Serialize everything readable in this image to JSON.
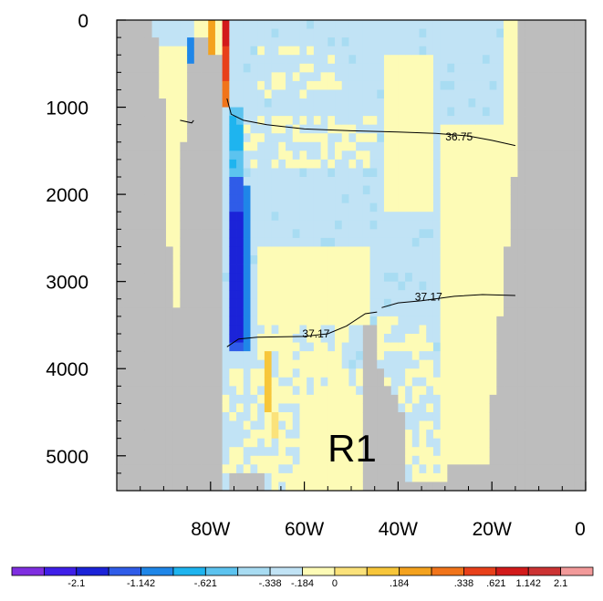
{
  "chart_data": {
    "type": "heatmap",
    "panel_label": "R1",
    "x_axis": {
      "range": [
        -100,
        0
      ],
      "ticks": [
        -80,
        -60,
        -40,
        -20,
        0
      ],
      "tick_labels": [
        "80W",
        "60W",
        "40W",
        "20W",
        "0"
      ]
    },
    "y_axis": {
      "range": [
        0,
        5400
      ],
      "reversed": true,
      "ticks": [
        0,
        1000,
        2000,
        3000,
        4000,
        5000
      ],
      "tick_labels": [
        "0",
        "1000",
        "2000",
        "3000",
        "4000",
        "5000"
      ]
    },
    "colorbar": {
      "colors": [
        "#7f2ee0",
        "#3f1fe8",
        "#1b23d8",
        "#2f5ce8",
        "#1f86e8",
        "#1eb4ef",
        "#5cc3ef",
        "#a8dcf2",
        "#c1e3f5",
        "#fdfbb6",
        "#fbe27a",
        "#f7c63a",
        "#f4a21e",
        "#f1741a",
        "#e8401a",
        "#d21a1a",
        "#cc3333",
        "#f29a9a"
      ],
      "labels": [
        "-2.1",
        "-1.142",
        "-.621",
        "-.338",
        "-.184",
        "0",
        ".184",
        ".338",
        ".621",
        "1.142",
        "2.1"
      ],
      "label_after_box": [
        1,
        3,
        5,
        7,
        8,
        9,
        11,
        13,
        14,
        15,
        16
      ]
    },
    "land_color": "#bdbdbd",
    "contours": [
      {
        "label": "36.75",
        "label_at": [
          -27,
          1380
        ],
        "points": [
          [
            -86.5,
            1150
          ],
          [
            -84,
            1180
          ],
          [
            -83.6,
            1150
          ]
        ]
      },
      {
        "label": "36.75",
        "label_at": [
          -27,
          1380
        ],
        "points": [
          [
            -76.5,
            900
          ],
          [
            -75.6,
            1080
          ],
          [
            -73,
            1150
          ],
          [
            -68,
            1200
          ],
          [
            -60,
            1250
          ],
          [
            -50,
            1270
          ],
          [
            -40,
            1285
          ],
          [
            -32,
            1300
          ],
          [
            -25,
            1330
          ],
          [
            -20,
            1380
          ],
          [
            -15,
            1440
          ]
        ]
      },
      {
        "label": "37.17",
        "label_at": [
          -57.5,
          3640
        ],
        "points": [
          [
            -76.5,
            3750
          ],
          [
            -74,
            3660
          ],
          [
            -70,
            3640
          ],
          [
            -60,
            3630
          ],
          [
            -55,
            3600
          ],
          [
            -51,
            3510
          ],
          [
            -47,
            3370
          ],
          [
            -44.5,
            3350
          ]
        ]
      },
      {
        "label": "37.17",
        "label_at": [
          -33.5,
          3220
        ],
        "points": [
          [
            -43.5,
            3300
          ],
          [
            -40,
            3245
          ],
          [
            -35,
            3220
          ],
          [
            -28,
            3170
          ],
          [
            -22,
            3150
          ],
          [
            -15,
            3160
          ]
        ]
      }
    ]
  }
}
